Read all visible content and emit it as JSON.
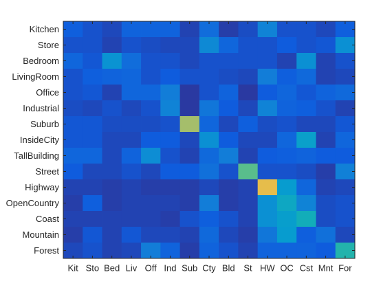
{
  "chart_data": {
    "type": "heatmap",
    "title": "",
    "xlabel": "",
    "ylabel": "",
    "row_labels": [
      "Kitchen",
      "Store",
      "Bedroom",
      "LivingRoom",
      "Office",
      "Industrial",
      "Suburb",
      "InsideCity",
      "TallBuilding",
      "Street",
      "Highway",
      "OpenCountry",
      "Coast",
      "Mountain",
      "Forest"
    ],
    "col_labels": [
      "Kit",
      "Sto",
      "Bed",
      "Liv",
      "Off",
      "Ind",
      "Sub",
      "Cty",
      "Bld",
      "St",
      "HW",
      "OC",
      "Cst",
      "Mnt",
      "For"
    ],
    "colormap": "parula",
    "value_range": [
      0,
      1
    ],
    "values": [
      [
        0.11,
        0.08,
        0.06,
        0.12,
        0.12,
        0.12,
        0.05,
        0.15,
        0.04,
        0.07,
        0.22,
        0.08,
        0.08,
        0.06,
        0.11
      ],
      [
        0.08,
        0.08,
        0.05,
        0.08,
        0.07,
        0.06,
        0.06,
        0.24,
        0.13,
        0.08,
        0.08,
        0.1,
        0.08,
        0.09,
        0.26
      ],
      [
        0.13,
        0.09,
        0.27,
        0.15,
        0.08,
        0.08,
        0.06,
        0.08,
        0.08,
        0.08,
        0.08,
        0.05,
        0.26,
        0.05,
        0.08
      ],
      [
        0.08,
        0.11,
        0.12,
        0.13,
        0.08,
        0.1,
        0.08,
        0.08,
        0.07,
        0.06,
        0.2,
        0.11,
        0.14,
        0.05,
        0.06
      ],
      [
        0.08,
        0.09,
        0.05,
        0.13,
        0.13,
        0.2,
        0.03,
        0.08,
        0.12,
        0.03,
        0.1,
        0.13,
        0.09,
        0.12,
        0.14
      ],
      [
        0.07,
        0.06,
        0.08,
        0.06,
        0.08,
        0.22,
        0.03,
        0.18,
        0.1,
        0.06,
        0.22,
        0.12,
        0.11,
        0.08,
        0.05
      ],
      [
        0.09,
        0.09,
        0.07,
        0.07,
        0.07,
        0.08,
        0.6,
        0.13,
        0.06,
        0.11,
        0.07,
        0.08,
        0.06,
        0.06,
        0.09
      ],
      [
        0.09,
        0.09,
        0.06,
        0.06,
        0.1,
        0.1,
        0.06,
        0.26,
        0.1,
        0.06,
        0.06,
        0.13,
        0.32,
        0.05,
        0.13
      ],
      [
        0.13,
        0.13,
        0.06,
        0.12,
        0.25,
        0.08,
        0.05,
        0.14,
        0.2,
        0.05,
        0.1,
        0.11,
        0.12,
        0.1,
        0.1
      ],
      [
        0.1,
        0.06,
        0.06,
        0.08,
        0.06,
        0.1,
        0.1,
        0.16,
        0.08,
        0.5,
        0.08,
        0.08,
        0.07,
        0.04,
        0.21
      ],
      [
        0.05,
        0.05,
        0.04,
        0.05,
        0.04,
        0.04,
        0.04,
        0.06,
        0.04,
        0.05,
        0.72,
        0.3,
        0.13,
        0.05,
        0.06
      ],
      [
        0.04,
        0.11,
        0.04,
        0.05,
        0.05,
        0.05,
        0.04,
        0.2,
        0.04,
        0.05,
        0.26,
        0.35,
        0.22,
        0.07,
        0.08
      ],
      [
        0.05,
        0.05,
        0.05,
        0.05,
        0.05,
        0.04,
        0.08,
        0.11,
        0.08,
        0.05,
        0.26,
        0.31,
        0.38,
        0.07,
        0.08
      ],
      [
        0.04,
        0.09,
        0.05,
        0.09,
        0.06,
        0.06,
        0.05,
        0.14,
        0.06,
        0.04,
        0.18,
        0.3,
        0.11,
        0.16,
        0.06
      ],
      [
        0.06,
        0.08,
        0.05,
        0.06,
        0.2,
        0.12,
        0.04,
        0.12,
        0.08,
        0.05,
        0.12,
        0.12,
        0.12,
        0.1,
        0.42
      ]
    ]
  }
}
